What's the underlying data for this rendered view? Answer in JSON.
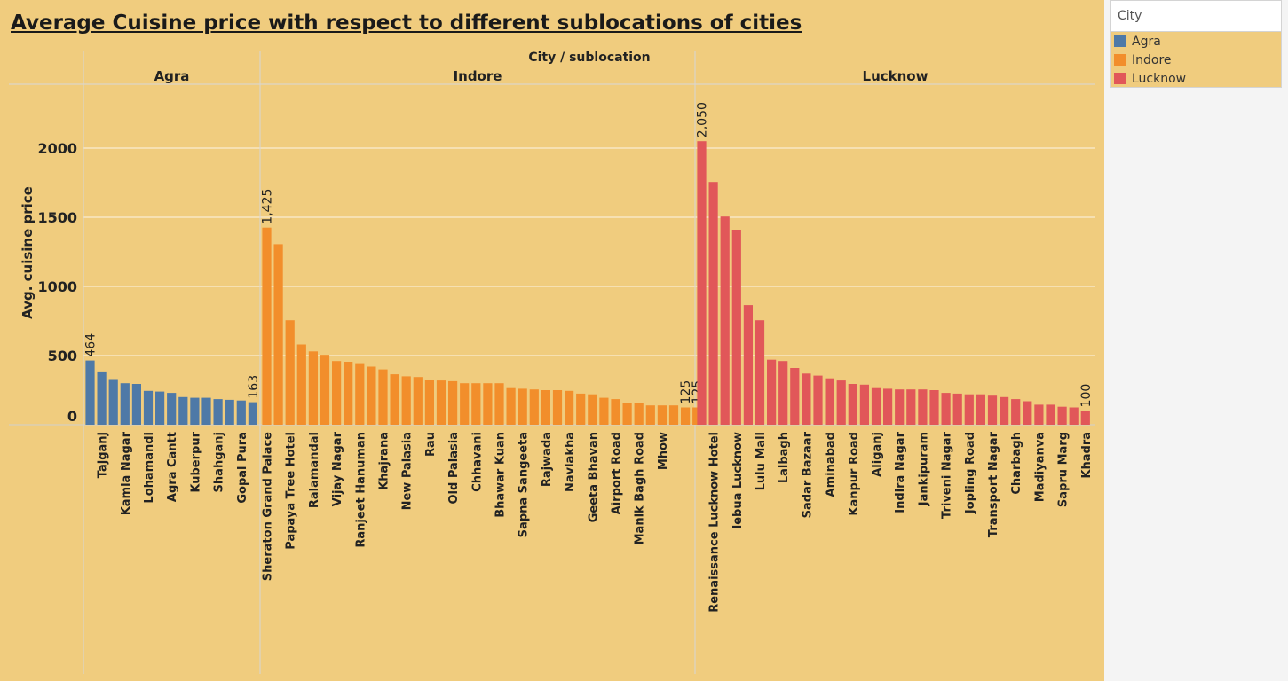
{
  "title": "Average Cuisine price with respect to different sublocations of cities",
  "legend": {
    "title": "City",
    "items": [
      {
        "label": "Agra",
        "color": "#4e79a7"
      },
      {
        "label": "Indore",
        "color": "#f28e2b"
      },
      {
        "label": "Lucknow",
        "color": "#e15759"
      }
    ]
  },
  "chart_data": {
    "type": "bar",
    "title": "Average Cuisine price with respect to different sublocations of cities",
    "column_header": "City / sublocation",
    "ylabel": "Avg. cuisine price",
    "ylim": [
      0,
      2400
    ],
    "yticks": [
      0,
      500,
      1000,
      1500,
      2000
    ],
    "grid": true,
    "legend_placement": "right",
    "panels": [
      {
        "name": "Agra",
        "color": "#4e79a7",
        "values": [
          464,
          385,
          330,
          300,
          295,
          245,
          240,
          230,
          200,
          195,
          195,
          185,
          180,
          175,
          163
        ],
        "labels": [
          "",
          "Tajganj",
          "",
          "Kamla Nagar",
          "",
          "Lohamandi",
          "",
          "Agra Cantt",
          "",
          "Kuberpur",
          "",
          "Shahganj",
          "",
          "Gopal Pura",
          ""
        ],
        "annotations": [
          {
            "index": 0,
            "text": "464"
          },
          {
            "index": 14,
            "text": "163"
          }
        ]
      },
      {
        "name": "Indore",
        "color": "#f28e2b",
        "values": [
          1425,
          1305,
          755,
          580,
          530,
          505,
          460,
          455,
          445,
          420,
          400,
          365,
          350,
          345,
          325,
          320,
          315,
          300,
          300,
          300,
          300,
          265,
          260,
          255,
          250,
          250,
          245,
          225,
          220,
          195,
          185,
          160,
          155,
          140,
          140,
          140,
          125,
          125
        ],
        "labels": [
          "Sheraton Grand Palace",
          "",
          "Papaya Tree Hotel",
          "",
          "Ralamandal",
          "",
          "Vijay Nagar",
          "",
          "Ranjeet Hanuman",
          "",
          "Khajrana",
          "",
          "New Palasia",
          "",
          "Rau",
          "",
          "Old Palasia",
          "",
          "Chhavani",
          "",
          "Bhawar Kuan",
          "",
          "Sapna Sangeeta",
          "",
          "Rajwada",
          "",
          "Navlakha",
          "",
          "Geeta Bhavan",
          "",
          "Airport Road",
          "",
          "Manik Bagh Road",
          "",
          "Mhow",
          "",
          "",
          ""
        ],
        "annotations": [
          {
            "index": 0,
            "text": "1,425"
          },
          {
            "index": 36,
            "text": "125"
          },
          {
            "index": 37,
            "text": "125"
          }
        ]
      },
      {
        "name": "Lucknow",
        "color": "#e15759",
        "values": [
          2050,
          1755,
          1505,
          1410,
          865,
          755,
          470,
          460,
          410,
          370,
          355,
          335,
          320,
          295,
          290,
          265,
          260,
          255,
          255,
          255,
          250,
          230,
          225,
          220,
          220,
          210,
          200,
          185,
          170,
          145,
          145,
          130,
          125,
          100
        ],
        "labels": [
          "",
          "Renaissance Lucknow Hotel",
          "",
          "lebua Lucknow",
          "",
          "Lulu Mall",
          "",
          "Lalbagh",
          "",
          "Sadar Bazaar",
          "",
          "Aminabad",
          "",
          "Kanpur Road",
          "",
          "Aliganj",
          "",
          "Indira Nagar",
          "",
          "Jankipuram",
          "",
          "Triveni Nagar",
          "",
          "Jopling Road",
          "",
          "Transport Nagar",
          "",
          "Charbagh",
          "",
          "Madiyanva",
          "",
          "Sapru Marg",
          "",
          "Khadra"
        ],
        "annotations": [
          {
            "index": 0,
            "text": "2,050"
          },
          {
            "index": 33,
            "text": "100"
          }
        ]
      }
    ]
  }
}
